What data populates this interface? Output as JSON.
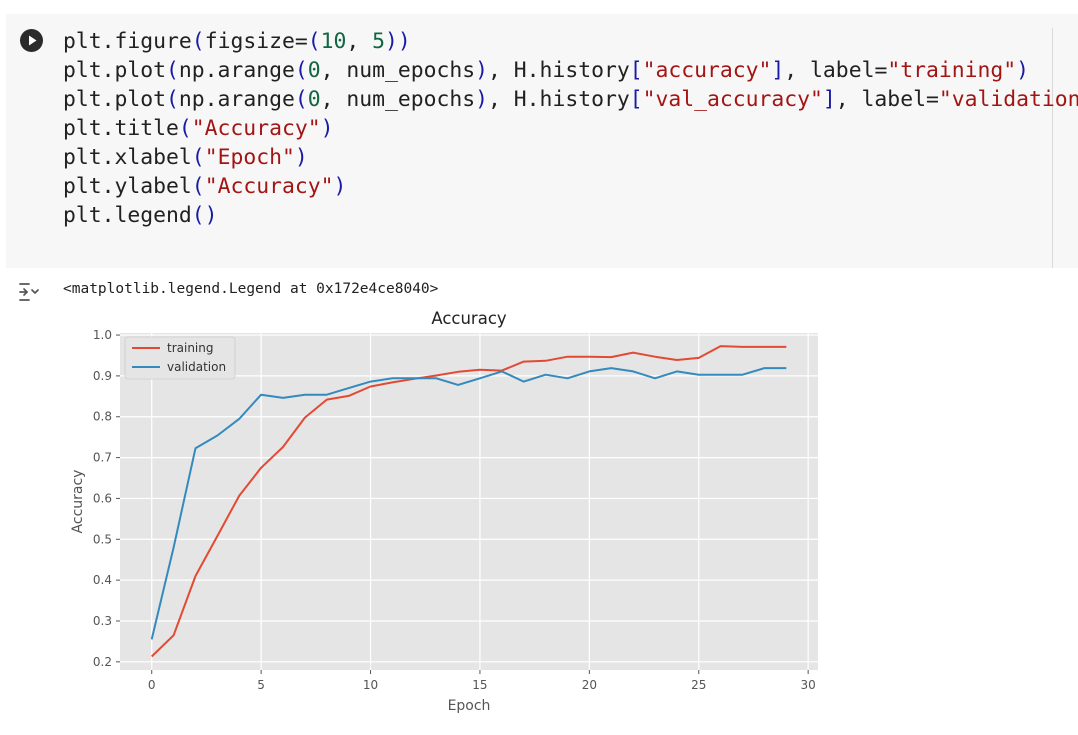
{
  "code_lines": [
    [
      [
        "t",
        "plt.figure"
      ],
      [
        "b",
        "("
      ],
      [
        "t",
        "figsize="
      ],
      [
        "b",
        "("
      ],
      [
        "g",
        "10"
      ],
      [
        "t",
        ", "
      ],
      [
        "g",
        "5"
      ],
      [
        "b",
        "))"
      ]
    ],
    [
      [
        "t",
        "plt.plot"
      ],
      [
        "b",
        "("
      ],
      [
        "t",
        "np.arange"
      ],
      [
        "b",
        "("
      ],
      [
        "g",
        "0"
      ],
      [
        "t",
        ", num_epochs"
      ],
      [
        "b",
        ")"
      ],
      [
        "t",
        ", H.history"
      ],
      [
        "b",
        "["
      ],
      [
        "s",
        "\"accuracy\""
      ],
      [
        "b",
        "]"
      ],
      [
        "t",
        ", label="
      ],
      [
        "s",
        "\"training\""
      ],
      [
        "b",
        ")"
      ]
    ],
    [
      [
        "t",
        "plt.plot"
      ],
      [
        "b",
        "("
      ],
      [
        "t",
        "np.arange"
      ],
      [
        "b",
        "("
      ],
      [
        "g",
        "0"
      ],
      [
        "t",
        ", num_epochs"
      ],
      [
        "b",
        ")"
      ],
      [
        "t",
        ", H.history"
      ],
      [
        "b",
        "["
      ],
      [
        "s",
        "\"val_accuracy\""
      ],
      [
        "b",
        "]"
      ],
      [
        "t",
        ", label="
      ],
      [
        "s",
        "\"validation\""
      ],
      [
        "b",
        ")"
      ]
    ],
    [
      [
        "t",
        "plt.title"
      ],
      [
        "b",
        "("
      ],
      [
        "s",
        "\"Accuracy\""
      ],
      [
        "b",
        ")"
      ]
    ],
    [
      [
        "t",
        "plt.xlabel"
      ],
      [
        "b",
        "("
      ],
      [
        "s",
        "\"Epoch\""
      ],
      [
        "b",
        ")"
      ]
    ],
    [
      [
        "t",
        "plt.ylabel"
      ],
      [
        "b",
        "("
      ],
      [
        "s",
        "\"Accuracy\""
      ],
      [
        "b",
        ")"
      ]
    ],
    [
      [
        "t",
        "plt.legend"
      ],
      [
        "b",
        "()"
      ]
    ]
  ],
  "output": {
    "text": "<matplotlib.legend.Legend at 0x172e4ce8040>"
  },
  "colors": {
    "training": "#e24a33",
    "validation": "#348abd",
    "plot_bg": "#e5e5e5",
    "grid": "#ffffff"
  },
  "chart_data": {
    "type": "line",
    "title": "Accuracy",
    "xlabel": "Epoch",
    "ylabel": "Accuracy",
    "xlim": [
      -1.45,
      30.45
    ],
    "ylim": [
      0.18,
      1.005
    ],
    "xticks": [
      0,
      5,
      10,
      15,
      20,
      25,
      30
    ],
    "yticks": [
      0.2,
      0.3,
      0.4,
      0.5,
      0.6,
      0.7,
      0.8,
      0.9,
      1.0
    ],
    "ytick_labels": [
      "0.2",
      "0.3",
      "0.4",
      "0.5",
      "0.6",
      "0.7",
      "0.8",
      "0.9",
      "1.0"
    ],
    "grid": true,
    "legend_position": "upper-left",
    "x": [
      0,
      1,
      2,
      3,
      4,
      5,
      6,
      7,
      8,
      9,
      10,
      11,
      12,
      13,
      14,
      15,
      16,
      17,
      18,
      19,
      20,
      21,
      22,
      23,
      24,
      25,
      26,
      27,
      28,
      29
    ],
    "series": [
      {
        "name": "training",
        "color": "#e24a33",
        "values": [
          0.213,
          0.265,
          0.41,
          0.508,
          0.607,
          0.675,
          0.726,
          0.798,
          0.842,
          0.851,
          0.874,
          0.884,
          0.893,
          0.901,
          0.91,
          0.915,
          0.913,
          0.935,
          0.937,
          0.947,
          0.947,
          0.946,
          0.957,
          0.947,
          0.939,
          0.944,
          0.973,
          0.971,
          0.971,
          0.971
        ]
      },
      {
        "name": "validation",
        "color": "#348abd",
        "values": [
          0.255,
          0.48,
          0.723,
          0.754,
          0.795,
          0.854,
          0.846,
          0.854,
          0.854,
          0.87,
          0.886,
          0.894,
          0.894,
          0.894,
          0.878,
          0.894,
          0.911,
          0.886,
          0.903,
          0.894,
          0.911,
          0.919,
          0.911,
          0.894,
          0.911,
          0.903,
          0.903,
          0.903,
          0.919,
          0.919
        ]
      }
    ]
  }
}
